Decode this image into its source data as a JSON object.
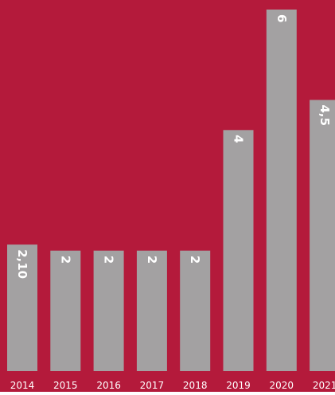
{
  "colors": {
    "background": "#b41a3b",
    "bar": "#a3a1a2",
    "value_label": "#ffffff",
    "tick_label": "#ffffff"
  },
  "chart_data": {
    "type": "bar",
    "orientation": "vertical",
    "title": "",
    "xlabel": "",
    "ylabel": "",
    "categories": [
      "2014",
      "2015",
      "2016",
      "2017",
      "2018",
      "2019",
      "2020",
      "2021"
    ],
    "values": [
      2.1,
      2,
      2,
      2,
      2,
      4,
      6,
      4.5
    ],
    "value_labels": [
      "2,10",
      "2",
      "2",
      "2",
      "2",
      "4",
      "6",
      "4,5"
    ],
    "value_label_rotation": "rotated 90° clockwise, near bar top",
    "ylim": [
      0,
      6
    ],
    "grid": false,
    "legend": "none"
  }
}
